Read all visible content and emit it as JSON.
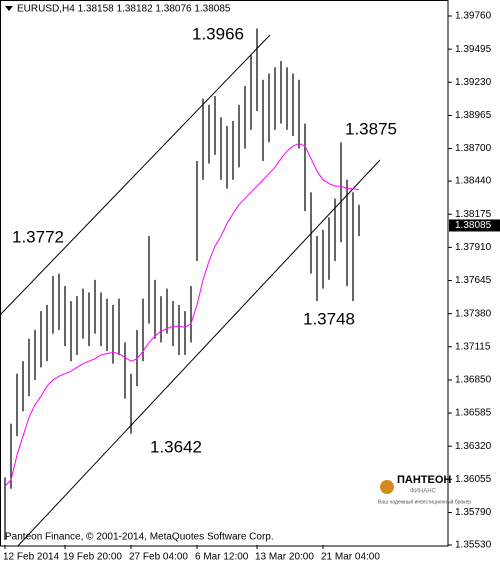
{
  "chart_data": {
    "type": "hl_bars",
    "header": "EURUSD,H4 1.38158 1.38182 1.38076 1.38085",
    "watermark": "Panteon Finance, © 2001-2014, MetaQuotes Software Corp.",
    "logo": {
      "name": "ПАНТЕОН",
      "sub": "ФИНАНС",
      "tagline": "Ваш надежный инвестиционный брокер"
    },
    "color": "#000000",
    "categories": [
      "12 Feb 2014",
      null,
      null,
      null,
      null,
      null,
      null,
      null,
      null,
      null,
      "19 Feb 20:00",
      null,
      null,
      null,
      null,
      null,
      null,
      null,
      null,
      null,
      null,
      "27 Feb 04:00",
      null,
      null,
      null,
      null,
      null,
      null,
      null,
      null,
      null,
      null,
      "6 Mar 12:00",
      null,
      null,
      null,
      null,
      null,
      null,
      null,
      null,
      null,
      "13 Mar 20:00",
      null,
      null,
      null,
      null,
      null,
      null,
      null,
      null,
      null,
      null,
      "21 Mar 04:00",
      null,
      null,
      null,
      null,
      null,
      null
    ],
    "high": [
      1.3607,
      1.365,
      1.369,
      1.37,
      1.3718,
      1.3725,
      1.374,
      1.3745,
      1.3768,
      1.377,
      1.376,
      1.3748,
      1.3752,
      1.3758,
      1.3755,
      1.3765,
      1.3755,
      1.375,
      1.3745,
      1.375,
      1.3715,
      1.369,
      1.3725,
      1.375,
      1.38,
      1.3765,
      1.3752,
      1.3758,
      1.3748,
      1.3745,
      1.374,
      1.376,
      1.386,
      1.391,
      1.3905,
      1.3912,
      1.3895,
      1.3888,
      1.3892,
      1.3905,
      1.392,
      1.3945,
      1.3966,
      1.3925,
      1.393,
      1.3935,
      1.394,
      1.3935,
      1.393,
      1.3925,
      1.389,
      1.3835,
      1.38,
      1.3805,
      1.3815,
      1.383,
      1.3875,
      1.3845,
      1.3835,
      1.3825
    ],
    "low": [
      1.3557,
      1.3598,
      1.364,
      1.366,
      1.3672,
      1.3685,
      1.3695,
      1.37,
      1.3722,
      1.3725,
      1.3712,
      1.37,
      1.3705,
      1.3718,
      1.3712,
      1.3722,
      1.3712,
      1.3708,
      1.3698,
      1.3705,
      1.367,
      1.3642,
      1.368,
      1.37,
      1.373,
      1.3718,
      1.3715,
      1.3722,
      1.3712,
      1.3705,
      1.3705,
      1.3715,
      1.378,
      1.3845,
      1.3858,
      1.3865,
      1.3845,
      1.3838,
      1.3845,
      1.3855,
      1.387,
      1.3885,
      1.39,
      1.386,
      1.3875,
      1.3885,
      1.389,
      1.3885,
      1.388,
      1.387,
      1.382,
      1.377,
      1.3748,
      1.3758,
      1.3765,
      1.378,
      1.3795,
      1.376,
      1.3748,
      1.38
    ],
    "ma": {
      "color": "#ff00ff",
      "values": [
        1.36,
        1.3605,
        1.3625,
        1.364,
        1.3655,
        1.3665,
        1.3672,
        1.368,
        1.3685,
        1.3688,
        1.369,
        1.3692,
        1.3695,
        1.3698,
        1.37,
        1.3702,
        1.3705,
        1.3706,
        1.3707,
        1.3706,
        1.3703,
        1.37,
        1.3702,
        1.3708,
        1.3715,
        1.372,
        1.3724,
        1.3726,
        1.3728,
        1.3728,
        1.3727,
        1.373,
        1.3745,
        1.3765,
        1.378,
        1.3792,
        1.38,
        1.381,
        1.3818,
        1.3825,
        1.383,
        1.3835,
        1.384,
        1.3845,
        1.385,
        1.3855,
        1.3862,
        1.3868,
        1.3872,
        1.3874,
        1.3872,
        1.3862,
        1.3852,
        1.3845,
        1.3842,
        1.384,
        1.384,
        1.3838,
        1.3838,
        1.3837
      ]
    },
    "ylim": [
      1.3553,
      1.3976
    ],
    "yticks": [
      {
        "value": 1.3976,
        "label": "1.39760"
      },
      1.39495,
      {
        "value": 1.3923,
        "label": "1.39230"
      },
      1.38965,
      {
        "value": 1.387,
        "label": "1.38700"
      },
      {
        "value": 1.3844,
        "label": "1.38440"
      },
      1.38175,
      {
        "value": 1.3791,
        "label": "1.37910"
      },
      1.37645,
      {
        "value": 1.3738,
        "label": "1.37380"
      },
      1.37115,
      {
        "value": 1.3685,
        "label": "1.36850"
      },
      1.36585,
      {
        "value": 1.3632,
        "label": "1.36320"
      },
      1.36055,
      {
        "value": 1.3579,
        "label": "1.35790"
      },
      {
        "value": 1.3553,
        "label": "1.35530"
      }
    ],
    "last_price": 1.38085,
    "grid": false,
    "annotations": [
      "1.3966",
      "1.3875",
      "1.3772",
      "1.3748",
      "1.3642"
    ]
  }
}
